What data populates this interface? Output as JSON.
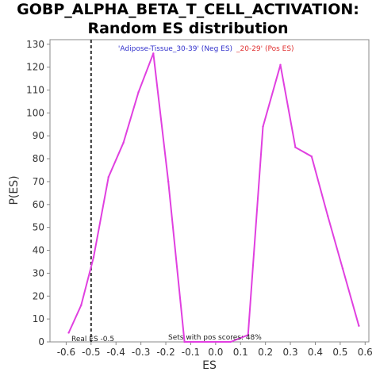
{
  "chart_data": {
    "type": "line",
    "title_line1": "GOBP_ALPHA_BETA_T_CELL_ACTIVATION:",
    "title_line2": "Random ES distribution",
    "xlabel": "ES",
    "ylabel": "P(ES)",
    "xlim": [
      -0.665,
      0.615
    ],
    "ylim": [
      0,
      132
    ],
    "x_ticks": [
      "-0.6",
      "-0.5",
      "-0.4",
      "-0.3",
      "-0.2",
      "-0.1",
      "0.0",
      "0.1",
      "0.2",
      "0.3",
      "0.4",
      "0.5",
      "0.6"
    ],
    "y_ticks": [
      "0",
      "10",
      "20",
      "30",
      "40",
      "50",
      "60",
      "70",
      "80",
      "90",
      "100",
      "110",
      "120",
      "130"
    ],
    "grid": false,
    "series": [
      {
        "color": "#e040e0",
        "points": [
          [
            -0.59,
            4
          ],
          [
            -0.54,
            16
          ],
          [
            -0.49,
            37
          ],
          [
            -0.43,
            72
          ],
          [
            -0.37,
            87
          ],
          [
            -0.31,
            109
          ],
          [
            -0.25,
            126
          ],
          [
            -0.19,
            70
          ],
          [
            -0.125,
            0
          ],
          [
            -0.09,
            0
          ],
          [
            0.06,
            0
          ],
          [
            0.13,
            3
          ],
          [
            0.19,
            94
          ],
          [
            0.26,
            121
          ],
          [
            0.32,
            85
          ],
          [
            0.385,
            81
          ],
          [
            0.45,
            55
          ],
          [
            0.51,
            32
          ],
          [
            0.575,
            7
          ]
        ]
      }
    ],
    "legend_neg": "'Adipose-Tissue_30-39' (Neg ES)",
    "legend_pos": "_20-29' (Pos ES)",
    "legend_neg_color": "#3333cc",
    "legend_pos_color": "#e03030",
    "real_es_value": -0.5,
    "real_es_label": "Real ES -0.5",
    "pos_scores_label": "Sets with pos scores: 48%"
  }
}
